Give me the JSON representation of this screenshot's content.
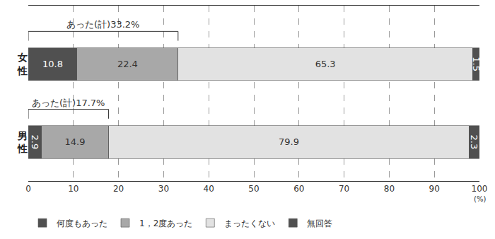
{
  "chart_data": {
    "type": "bar",
    "orientation": "horizontal",
    "stacked": true,
    "data_labels": true,
    "grid": true,
    "legend": "bottom",
    "categories": [
      "女性",
      "男性"
    ],
    "series": [
      {
        "name": "何度もあった",
        "color": "#505050",
        "values": [
          10.8,
          2.9
        ]
      },
      {
        "name": "1，2度あった",
        "color": "#a8a8a8",
        "values": [
          22.4,
          14.9
        ]
      },
      {
        "name": "まったくない",
        "color": "#e2e2e2",
        "values": [
          65.3,
          79.9
        ]
      },
      {
        "name": "無回答",
        "color": "#505050",
        "values": [
          1.5,
          2.3
        ]
      }
    ],
    "xlim": [
      0,
      100
    ],
    "xticks": [
      0,
      10,
      20,
      30,
      40,
      50,
      60,
      70,
      80,
      90,
      100
    ],
    "x_label": "(%)",
    "annotations": [
      {
        "text": "あった(計)33.2%",
        "category": "女性"
      },
      {
        "text": "あった(計)17.7%",
        "category": "男性"
      }
    ]
  }
}
